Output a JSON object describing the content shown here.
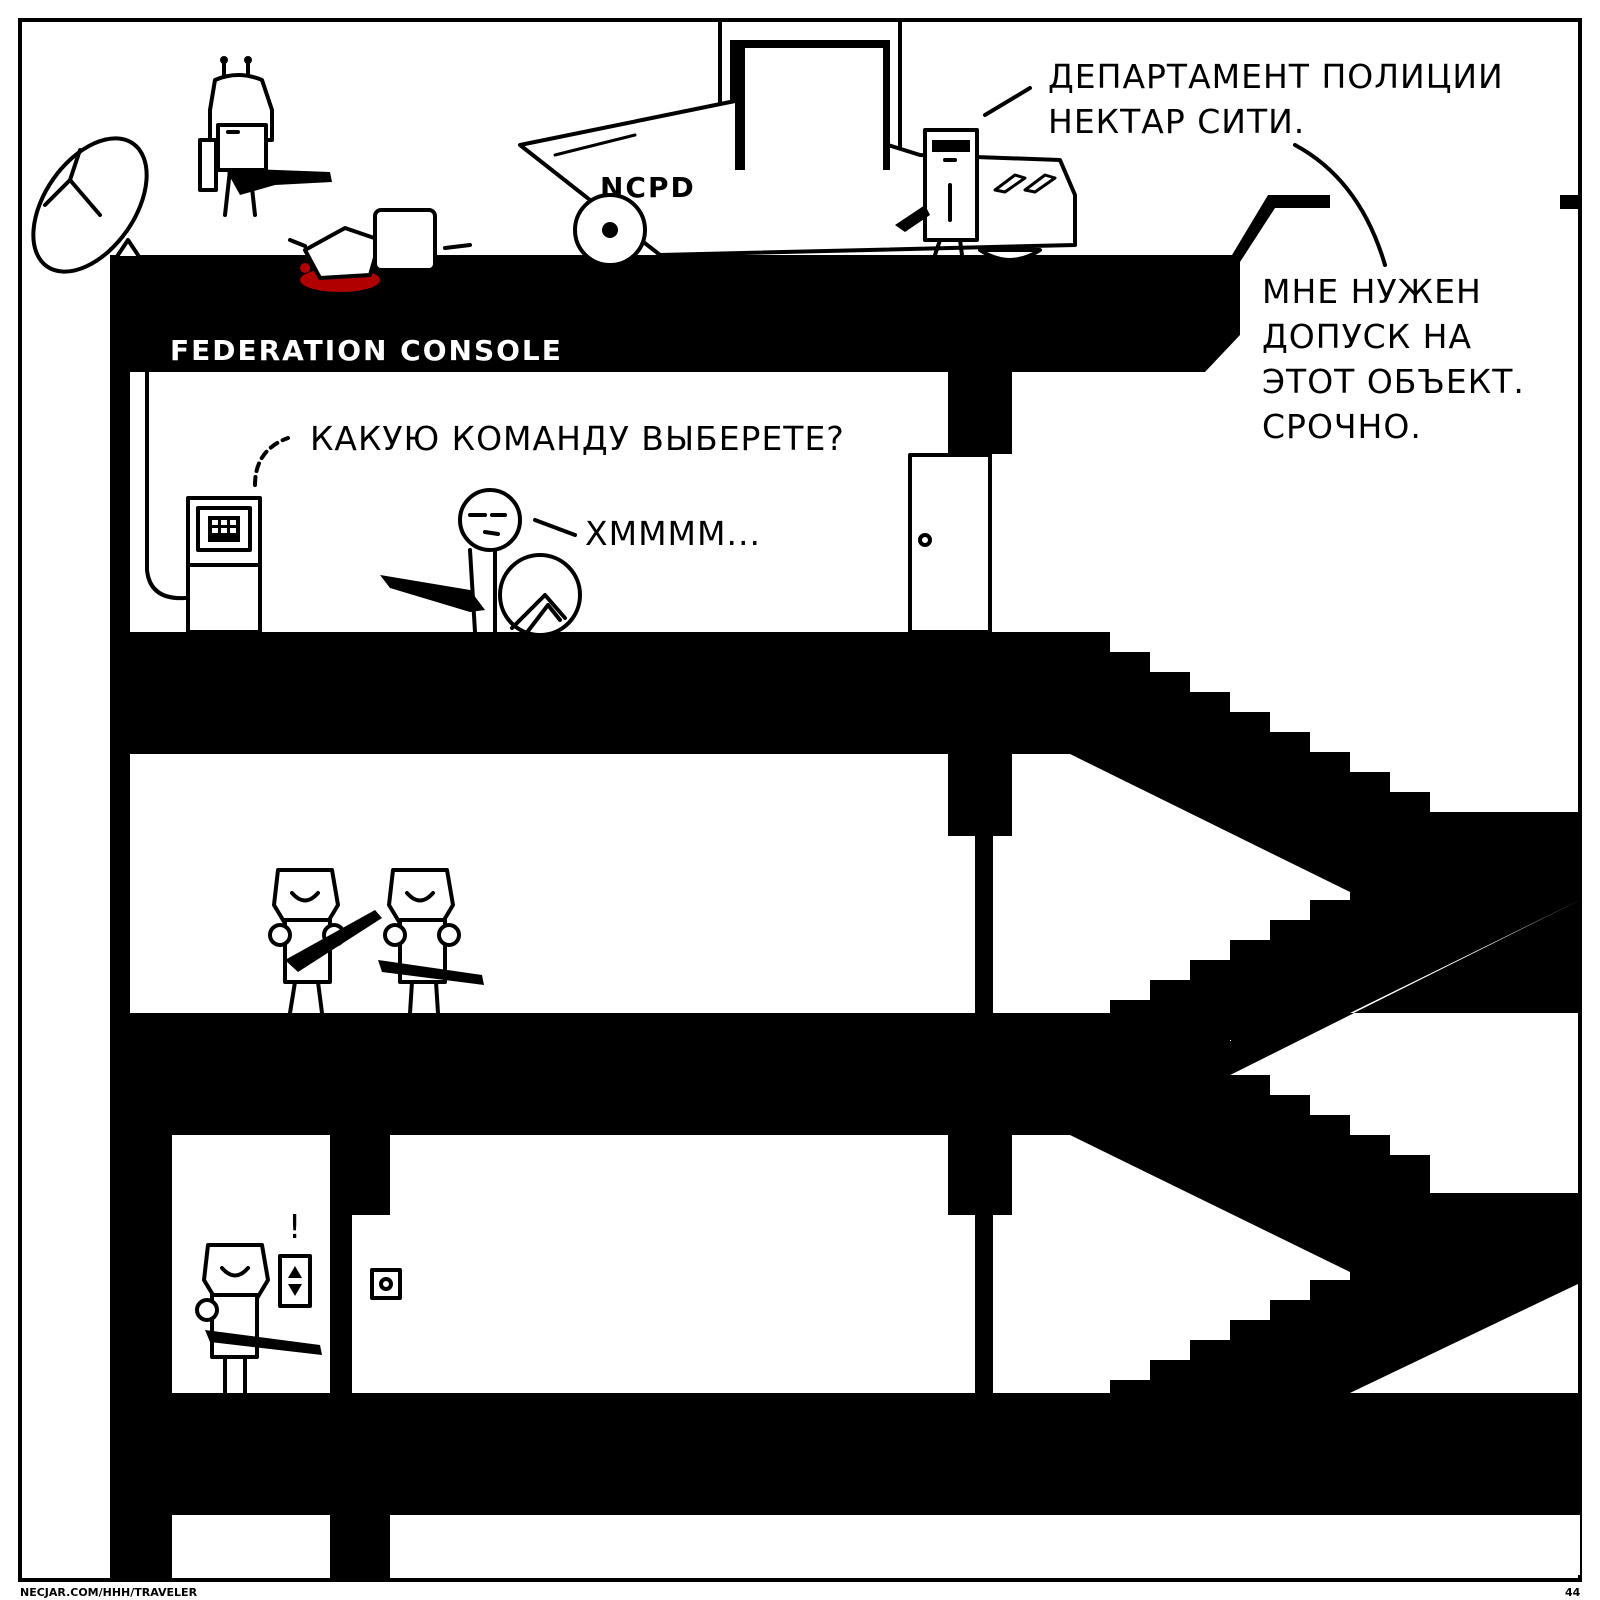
{
  "signs": {
    "building": "FEDERATION CONSOLE",
    "vehicle": "NCPD"
  },
  "dialogue": {
    "officer_line1": "ДЕПАРТАМЕНТ ПОЛИЦИИ",
    "officer_line2": "НЕКТАР СИТИ.",
    "officer2_line1": "МНЕ НУЖЕН",
    "officer2_line2": "ДОПУСК НА",
    "officer2_line3": "ЭТОТ ОБЪЕКТ.",
    "officer2_line4": "СРОЧНО.",
    "console_prompt": "КАКУЮ КОМАНДУ ВЫБЕРЕТЕ?",
    "hero_reply": "ХММММ..."
  },
  "footer": {
    "url": "NECJAR.COM/HHH/TRAVELER",
    "page_number": "44"
  },
  "colors": {
    "ink": "#000000",
    "paper": "#ffffff",
    "blood": "#b00000"
  }
}
